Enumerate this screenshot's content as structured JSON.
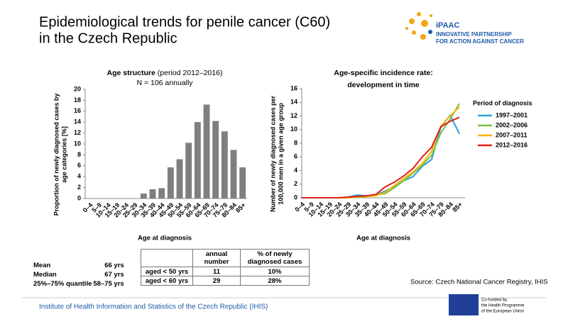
{
  "header": {
    "title_lines": [
      "Epidemiological trends for penile cancer (C60)",
      "in the Czech Republic"
    ]
  },
  "logo": {
    "name": "iPAAC",
    "lines": [
      "INNOVATIVE PARTNERSHIP",
      "FOR ACTION AGAINST CANCER"
    ]
  },
  "chart_data": [
    {
      "type": "bar",
      "title": "Age structure",
      "title_note": "(period 2012–2016)",
      "subtitle": "N = 106 annually",
      "ylabel": [
        "Proportion of newly diagnosed cases by",
        "age categories [%]"
      ],
      "xlabel": "Age at diagnosis",
      "categories": [
        "0–4",
        "5–9",
        "10–14",
        "15–19",
        "20–24",
        "25–29",
        "30–34",
        "35–39",
        "40–44",
        "45–49",
        "50–54",
        "55–59",
        "60–64",
        "65–69",
        "70–74",
        "75–79",
        "80–84",
        "85+"
      ],
      "values": [
        0,
        0,
        0,
        0,
        0,
        0,
        0.9,
        1.7,
        1.9,
        5.7,
        7.2,
        10.2,
        14.0,
        17.2,
        14.2,
        12.3,
        8.9,
        5.7
      ],
      "color": "#7f7f7f",
      "ylim": [
        0,
        20
      ],
      "yticks": [
        0,
        2,
        4,
        6,
        8,
        10,
        12,
        14,
        16,
        18,
        20
      ],
      "grid": false
    },
    {
      "type": "line",
      "title": [
        "Age-specific incidence rate:",
        "development in time"
      ],
      "ylabel": [
        "Number of newly diagnosed cases per",
        "100,000 men in a given age group"
      ],
      "xlabel": "Age at diagnosis",
      "legend_title": "Period of diagnosis",
      "categories": [
        "0–4",
        "5–9",
        "10–14",
        "15–19",
        "20–24",
        "25–29",
        "30–34",
        "35–39",
        "40–44",
        "45–49",
        "50–54",
        "55–59",
        "60–64",
        "65–69",
        "70–74",
        "75–79",
        "80–84",
        "85+"
      ],
      "series": [
        {
          "name": "1997–2001",
          "color": "#2aa0d8",
          "values": [
            0,
            0,
            0,
            0,
            0,
            0.1,
            0.4,
            0.3,
            0.4,
            1.0,
            1.6,
            2.5,
            3.1,
            4.6,
            5.6,
            10.3,
            12.1,
            9.4
          ]
        },
        {
          "name": "2002–2006",
          "color": "#7ac143",
          "values": [
            0,
            0,
            0,
            0,
            0,
            0,
            0.1,
            0.2,
            0.4,
            0.6,
            1.5,
            2.5,
            3.6,
            4.8,
            6.2,
            9.5,
            11.5,
            13.8
          ]
        },
        {
          "name": "2007–2011",
          "color": "#f7b500",
          "values": [
            0,
            0,
            0,
            0,
            0,
            0,
            0.1,
            0.2,
            0.3,
            0.8,
            1.8,
            2.8,
            3.8,
            5.0,
            6.8,
            10.5,
            12.0,
            13.3
          ]
        },
        {
          "name": "2012–2016",
          "color": "#e0201b",
          "values": [
            0,
            0,
            0,
            0,
            0,
            0.1,
            0.2,
            0.3,
            0.5,
            1.6,
            2.3,
            3.2,
            4.3,
            6.0,
            7.4,
            10.4,
            11.2,
            11.8
          ]
        }
      ],
      "ylim": [
        0,
        16
      ],
      "yticks": [
        0,
        2,
        4,
        6,
        8,
        10,
        12,
        14,
        16
      ],
      "grid": false,
      "legend": "right"
    }
  ],
  "stats": {
    "rows": [
      [
        "Mean",
        "66 yrs"
      ],
      [
        "Median",
        "67 yrs"
      ],
      [
        "25%–75% quantile",
        "58–75 yrs"
      ]
    ]
  },
  "table": {
    "header": [
      "annual number",
      "% of newly diagnosed cases"
    ],
    "rows": [
      [
        "aged < 50 yrs",
        "11",
        "10%"
      ],
      [
        "aged < 60 yrs",
        "29",
        "28%"
      ]
    ]
  },
  "source": "Source: Czech National Cancer Registry, IHIS",
  "footer": "Institute of Health Information and Statistics of the Czech Republic (IHIS)",
  "eu": [
    "Co-funded by",
    "the Health Programme",
    "of the European Union"
  ]
}
